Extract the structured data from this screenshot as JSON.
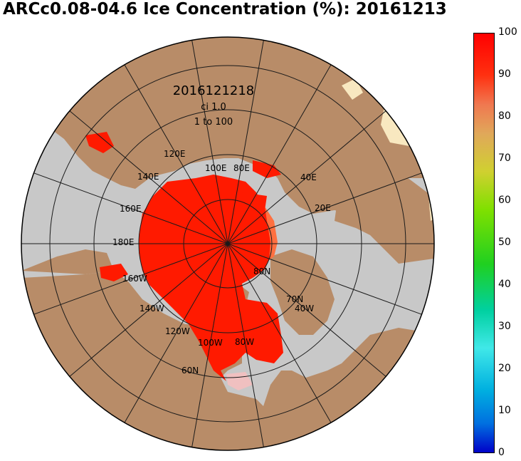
{
  "title": "ARCc0.08-04.6 Ice Concentration (%): 20161213",
  "map_labels": {
    "datetime": "2016121218",
    "ci": "ci 1.0",
    "range": "1 to 100",
    "lon_120E": "120E",
    "lon_140E": "140E",
    "lon_100E": "100E",
    "lon_80E": "80E",
    "lon_40E": "40E",
    "lon_160E": "160E",
    "lon_20E": "20E",
    "lon_180E": "180E",
    "lon_160W": "160W",
    "lon_140W": "140W",
    "lon_120W": "120W",
    "lon_100W": "100W",
    "lon_80W": "80W",
    "lon_40W": "40W",
    "lat_80N": "80N",
    "lat_70N": "70N",
    "lat_60N": "60N"
  },
  "colorbar": {
    "min": 0,
    "max": 100,
    "ticks": [
      "100",
      "90",
      "80",
      "70",
      "60",
      "50",
      "40",
      "30",
      "20",
      "10",
      "0"
    ],
    "colors": [
      "#ff0000",
      "#ff5a1e",
      "#f08c50",
      "#e6a85a",
      "#d8c838",
      "#9ae000",
      "#3cd200",
      "#00d090",
      "#40e8e8",
      "#00b0e0",
      "#0070e0",
      "#0000c8"
    ]
  },
  "colors": {
    "ocean": "#c8c8c8",
    "land": "#b88c68",
    "ice": "#ff1a00",
    "ice_edge": "#ff7040",
    "greenland_ice": "#f8e8c0",
    "grid": "#1a1a1a"
  }
}
